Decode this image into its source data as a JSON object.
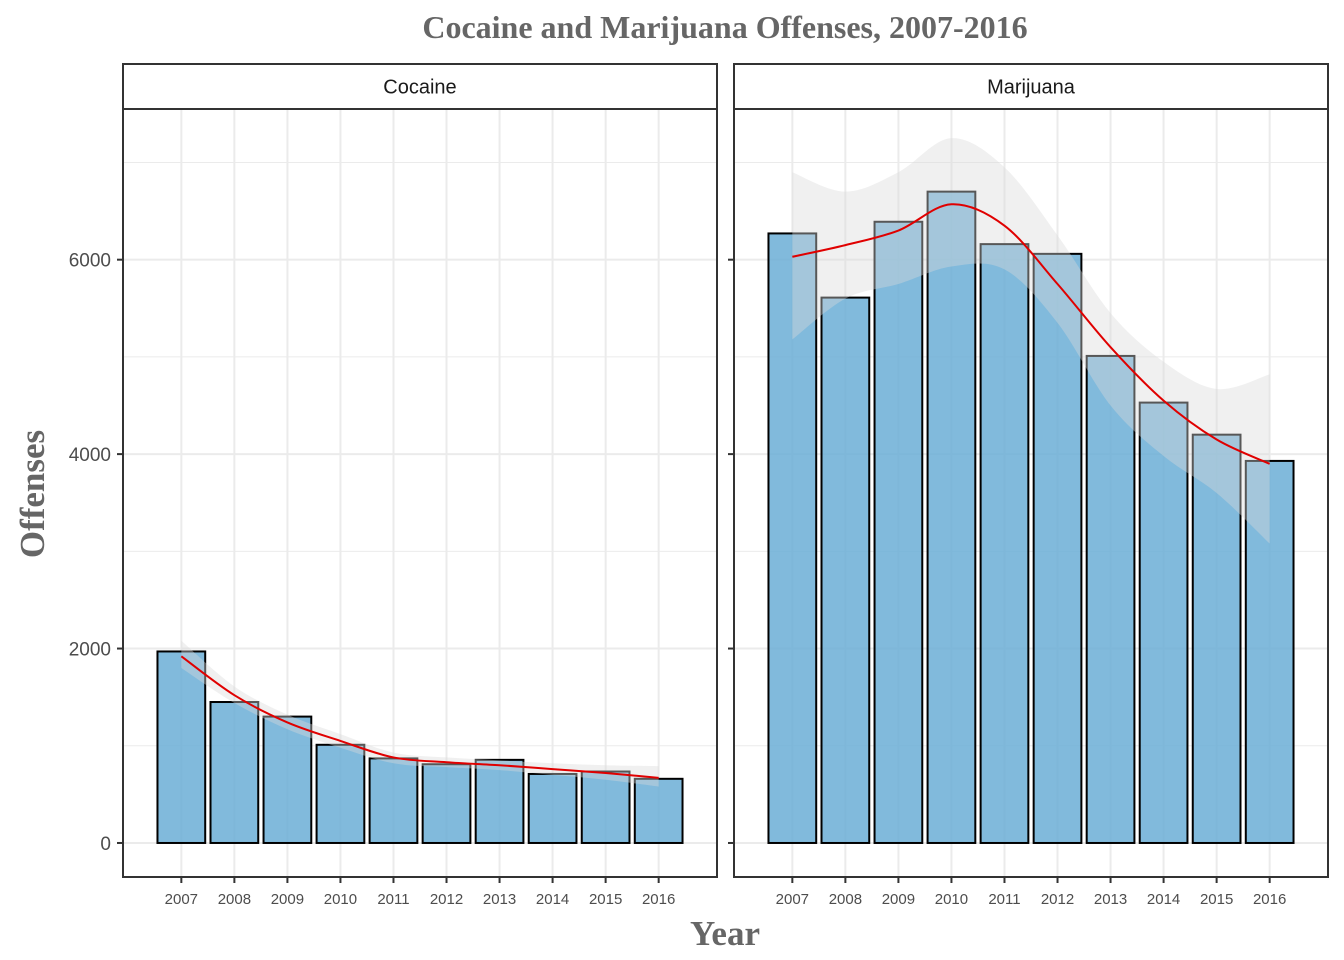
{
  "chart_data": {
    "type": "bar",
    "title": "Cocaine and Marijuana Offenses, 2007-2016",
    "xlabel": "Year",
    "ylabel": "Offenses",
    "ylim": [
      -350,
      7550
    ],
    "y_ticks": [
      0,
      2000,
      4000,
      6000
    ],
    "categories": [
      "2007",
      "2008",
      "2009",
      "2010",
      "2011",
      "2012",
      "2013",
      "2014",
      "2015",
      "2016"
    ],
    "grid": true,
    "colors": {
      "bar_fill": "#6baed6",
      "bar_stroke": "#000000",
      "trend_line": "#e00000",
      "ribbon": "#d9d9d9",
      "grid": "#ebebeb",
      "strip_bg": "#ffffff"
    },
    "panels": [
      {
        "name": "Cocaine",
        "values": [
          1970,
          1450,
          1300,
          1010,
          870,
          810,
          855,
          710,
          735,
          660
        ],
        "smooth": [
          1920,
          1520,
          1240,
          1050,
          880,
          830,
          800,
          760,
          720,
          670
        ],
        "smooth_lower": [
          1800,
          1440,
          1170,
          980,
          820,
          780,
          750,
          700,
          650,
          580
        ],
        "smooth_upper": [
          2080,
          1610,
          1320,
          1120,
          930,
          880,
          850,
          820,
          800,
          790
        ]
      },
      {
        "name": "Marijuana",
        "values": [
          6270,
          5610,
          6390,
          6700,
          6160,
          6060,
          5010,
          4530,
          4200,
          3930
        ],
        "smooth": [
          6030,
          6150,
          6300,
          6570,
          6350,
          5750,
          5100,
          4550,
          4150,
          3900
        ],
        "smooth_lower": [
          5180,
          5600,
          5750,
          5930,
          5900,
          5350,
          4500,
          3980,
          3600,
          3080
        ],
        "smooth_upper": [
          6900,
          6700,
          6900,
          7250,
          6950,
          6250,
          5450,
          4950,
          4670,
          4820
        ]
      }
    ]
  }
}
